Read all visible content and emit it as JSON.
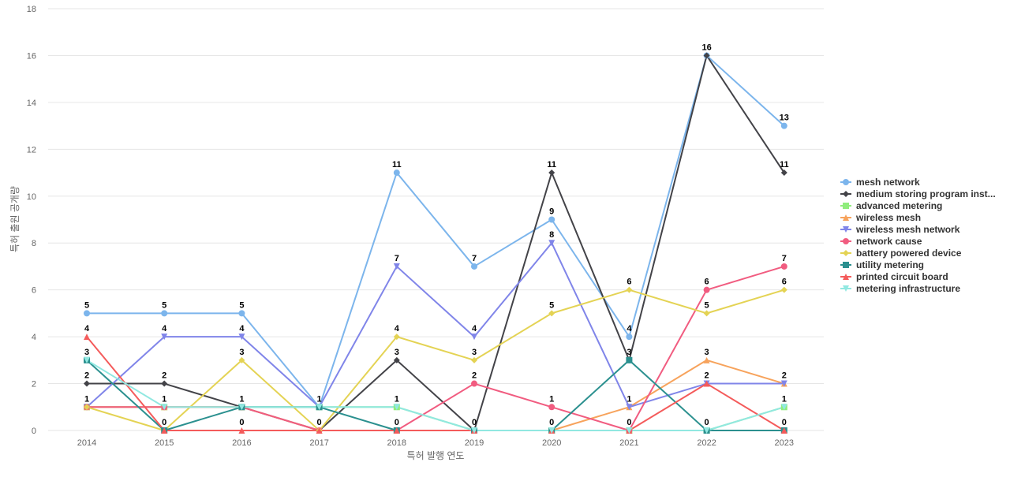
{
  "chart_data": {
    "type": "line",
    "title": "",
    "xlabel": "특허 발행 연도",
    "ylabel": "특허 출원 공개량",
    "ylim": [
      0,
      18
    ],
    "y_ticks": [
      0,
      2,
      4,
      6,
      8,
      10,
      12,
      14,
      16,
      18
    ],
    "grid": true,
    "legend_position": "right",
    "categories": [
      "2014",
      "2015",
      "2016",
      "2017",
      "2018",
      "2019",
      "2020",
      "2021",
      "2022",
      "2023"
    ],
    "series": [
      {
        "name": "mesh network",
        "color": "#7cb5ec",
        "marker": "circle",
        "values": [
          5,
          5,
          5,
          1,
          11,
          7,
          9,
          4,
          16,
          13
        ]
      },
      {
        "name": "medium storing program inst...",
        "color": "#434348",
        "marker": "diamond",
        "values": [
          2,
          2,
          1,
          0,
          3,
          0,
          11,
          3,
          16,
          11
        ]
      },
      {
        "name": "advanced metering",
        "color": "#90ed7d",
        "marker": "square",
        "values": [
          1,
          1,
          1,
          1,
          1,
          0,
          0,
          0,
          0,
          1
        ]
      },
      {
        "name": "wireless mesh",
        "color": "#f7a35c",
        "marker": "triangle",
        "values": [
          1,
          1,
          1,
          0,
          0,
          0,
          0,
          1,
          3,
          2
        ]
      },
      {
        "name": "wireless mesh network",
        "color": "#8085e9",
        "marker": "triangle-down",
        "values": [
          1,
          4,
          4,
          1,
          7,
          4,
          8,
          1,
          2,
          2
        ]
      },
      {
        "name": "network cause",
        "color": "#f15c80",
        "marker": "circle",
        "values": [
          1,
          1,
          1,
          0,
          0,
          2,
          1,
          0,
          6,
          7
        ]
      },
      {
        "name": "battery powered device",
        "color": "#e4d354",
        "marker": "diamond",
        "values": [
          1,
          0,
          3,
          0,
          4,
          3,
          5,
          6,
          5,
          6
        ]
      },
      {
        "name": "utility metering",
        "color": "#2b908f",
        "marker": "square",
        "values": [
          3,
          0,
          1,
          1,
          0,
          0,
          0,
          3,
          0,
          0
        ]
      },
      {
        "name": "printed circuit board",
        "color": "#f45b5b",
        "marker": "triangle",
        "values": [
          4,
          0,
          0,
          0,
          0,
          0,
          0,
          0,
          2,
          0
        ]
      },
      {
        "name": "metering infrastructure",
        "color": "#91e8e1",
        "marker": "triangle-down",
        "values": [
          3,
          1,
          1,
          1,
          1,
          0,
          0,
          0,
          0,
          1
        ]
      }
    ],
    "data_labels": [
      {
        "category": "2014",
        "values": [
          5,
          4,
          3,
          2,
          1
        ]
      },
      {
        "category": "2015",
        "values": [
          5,
          4,
          2,
          1,
          0
        ]
      },
      {
        "category": "2016",
        "values": [
          5,
          4,
          3,
          1,
          0
        ]
      },
      {
        "category": "2017",
        "values": [
          1,
          0
        ]
      },
      {
        "category": "2018",
        "values": [
          11,
          7,
          4,
          3,
          1,
          0
        ]
      },
      {
        "category": "2019",
        "values": [
          7,
          4,
          3,
          2,
          0
        ]
      },
      {
        "category": "2020",
        "values": [
          11,
          9,
          8,
          5,
          1,
          0
        ]
      },
      {
        "category": "2021",
        "values": [
          6,
          4,
          3,
          1,
          0
        ]
      },
      {
        "category": "2022",
        "values": [
          16,
          6,
          5,
          3,
          2,
          0
        ]
      },
      {
        "category": "2023",
        "values": [
          13,
          11,
          7,
          6,
          2,
          1,
          0
        ]
      }
    ]
  }
}
